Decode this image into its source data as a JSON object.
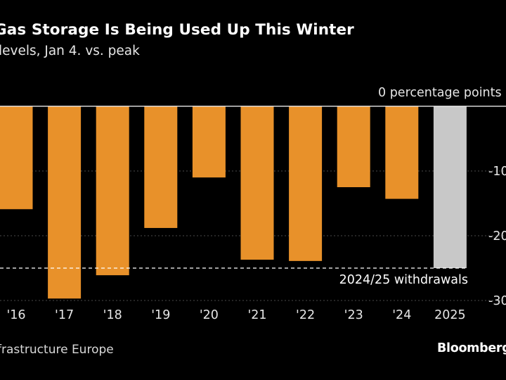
{
  "title": "Gas Storage Is Being Used Up This Winter",
  "subtitle": "levels, Jan 4. vs. peak",
  "source": "frastructure Europe",
  "brand": "Bloomberg",
  "chart_data": {
    "type": "bar",
    "categories": [
      "'16",
      "'17",
      "'18",
      "'19",
      "'20",
      "'21",
      "'22",
      "'23",
      "'24",
      "2025"
    ],
    "values": [
      -15.9,
      -29.7,
      -26.1,
      -18.8,
      -11.0,
      -23.7,
      -23.9,
      -12.5,
      -14.3,
      -25.0
    ],
    "highlight_index": 9,
    "colors": {
      "bar": "#e8912a",
      "highlight": "#c8c8c8",
      "grid": "#4a4a4a",
      "axis": "#ffffff",
      "reference": "#ffffff"
    },
    "ylim": [
      -30,
      0
    ],
    "yticks": [
      0,
      -10,
      -20,
      -30
    ],
    "ytick_labels": [
      "0 percentage points",
      "-10",
      "-20",
      "-30"
    ],
    "reference_line": {
      "value": -25.0,
      "label": "2024/25 withdrawals"
    },
    "xlabel": "",
    "ylabel": "percentage points"
  },
  "icons": {}
}
